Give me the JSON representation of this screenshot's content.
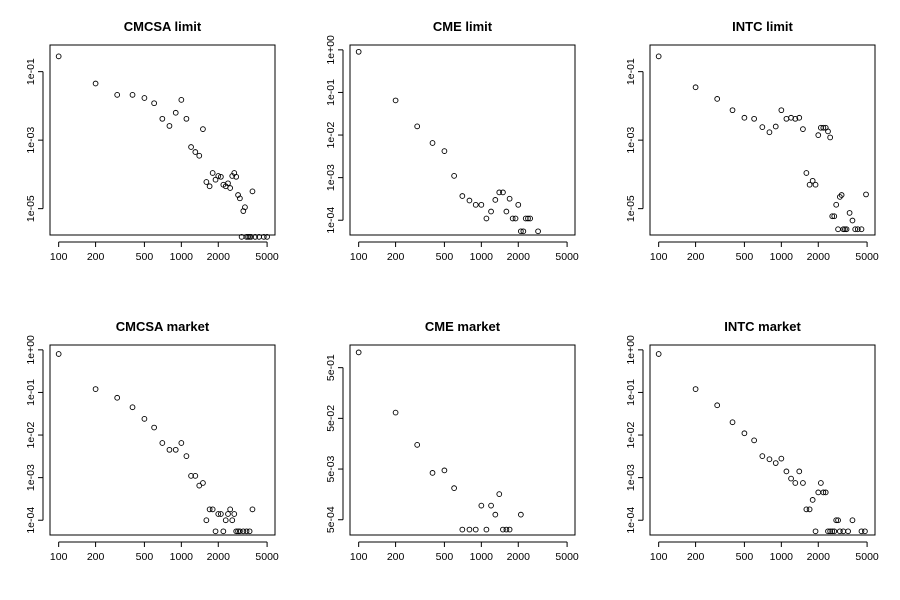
{
  "chart_data": [
    {
      "type": "scatter",
      "title": "CMCSA limit",
      "x_log": true,
      "y_log": true,
      "xlim": [
        85,
        5800
      ],
      "ylim": [
        1.7e-06,
        0.6
      ],
      "x_ticks": [
        100,
        200,
        500,
        1000,
        2000,
        5000
      ],
      "x_tick_labels": [
        "100",
        "200",
        "500",
        "1000",
        "2000",
        "5000"
      ],
      "y_ticks": [
        0.1,
        0.001,
        1e-05
      ],
      "y_tick_labels": [
        "1e-01",
        "1e-03",
        "1e-05"
      ],
      "x": [
        100,
        200,
        300,
        400,
        500,
        600,
        700,
        800,
        900,
        1000,
        1100,
        1200,
        1300,
        1400,
        1500,
        1600,
        1700,
        1800,
        1900,
        2000,
        2100,
        2200,
        2300,
        2400,
        2500,
        2600,
        2700,
        2800,
        2900,
        3000,
        3100,
        3200,
        3300,
        3400,
        3500,
        3600,
        3700,
        3800,
        4000,
        4300,
        4700,
        5000
      ],
      "y": [
        0.28,
        0.045,
        0.021,
        0.021,
        0.017,
        0.012,
        0.0042,
        0.0026,
        0.0063,
        0.015,
        0.0042,
        0.00063,
        0.00045,
        0.00035,
        0.0021,
        6e-05,
        4.5e-05,
        0.00011,
        7e-05,
        9e-05,
        8.5e-05,
        5e-05,
        4.5e-05,
        5.5e-05,
        4e-05,
        9e-05,
        0.00011,
        8.5e-05,
        2.5e-05,
        2e-05,
        1.5e-06,
        8.5e-06,
        1.1e-05,
        1.5e-06,
        1.5e-06,
        1.5e-06,
        1.5e-06,
        3.2e-05,
        1.5e-06,
        1.5e-06,
        1.5e-06,
        1.5e-06
      ]
    },
    {
      "type": "scatter",
      "title": "CME limit",
      "x_log": true,
      "y_log": true,
      "xlim": [
        85,
        5800
      ],
      "ylim": [
        4.5e-05,
        1.3
      ],
      "x_ticks": [
        100,
        200,
        500,
        1000,
        2000,
        5000
      ],
      "x_tick_labels": [
        "100",
        "200",
        "500",
        "1000",
        "2000",
        "5000"
      ],
      "y_ticks": [
        1,
        0.1,
        0.01,
        0.001,
        0.0001
      ],
      "y_tick_labels": [
        "1e+00",
        "1e-01",
        "1e-02",
        "1e-03",
        "1e-04"
      ],
      "x": [
        100,
        200,
        300,
        400,
        500,
        600,
        700,
        800,
        900,
        1000,
        1100,
        1200,
        1300,
        1400,
        1500,
        1600,
        1700,
        1800,
        1900,
        2000,
        2100,
        2200,
        2300,
        2400,
        2500,
        2900
      ],
      "y": [
        0.9,
        0.065,
        0.016,
        0.0065,
        0.0042,
        0.0011,
        0.00037,
        0.00029,
        0.00023,
        0.00023,
        0.00011,
        0.00016,
        0.0003,
        0.00045,
        0.00045,
        0.00016,
        0.00032,
        0.00011,
        0.00011,
        0.00023,
        5.5e-05,
        5.5e-05,
        0.00011,
        0.00011,
        0.00011,
        5.5e-05
      ]
    },
    {
      "type": "scatter",
      "title": "INTC limit",
      "x_log": true,
      "y_log": true,
      "xlim": [
        85,
        5800
      ],
      "ylim": [
        1.7e-06,
        0.6
      ],
      "x_ticks": [
        100,
        200,
        500,
        1000,
        2000,
        5000
      ],
      "x_tick_labels": [
        "100",
        "200",
        "500",
        "1000",
        "2000",
        "5000"
      ],
      "y_ticks": [
        0.1,
        0.001,
        1e-05
      ],
      "y_tick_labels": [
        "1e-01",
        "1e-03",
        "1e-05"
      ],
      "x": [
        100,
        200,
        300,
        400,
        500,
        600,
        700,
        800,
        900,
        1000,
        1100,
        1200,
        1300,
        1400,
        1500,
        1600,
        1700,
        1800,
        1900,
        2000,
        2100,
        2200,
        2300,
        2400,
        2500,
        2600,
        2700,
        2800,
        2900,
        3000,
        3100,
        3200,
        3300,
        3400,
        3600,
        3800,
        4000,
        4200,
        4500,
        4900
      ],
      "y": [
        0.28,
        0.035,
        0.016,
        0.0075,
        0.0045,
        0.0042,
        0.0024,
        0.0017,
        0.0025,
        0.0075,
        0.0042,
        0.0045,
        0.0042,
        0.0045,
        0.0021,
        0.00011,
        5e-05,
        6.5e-05,
        5e-05,
        0.0014,
        0.0023,
        0.0023,
        0.0023,
        0.0018,
        0.0012,
        6e-06,
        6e-06,
        1.3e-05,
        2.5e-06,
        2.2e-05,
        2.5e-05,
        2.5e-06,
        2.5e-06,
        2.5e-06,
        7.5e-06,
        4.5e-06,
        2.5e-06,
        2.5e-06,
        2.5e-06,
        2.6e-05
      ]
    },
    {
      "type": "scatter",
      "title": "CMCSA market",
      "x_log": true,
      "y_log": true,
      "xlim": [
        85,
        5800
      ],
      "ylim": [
        4.5e-05,
        1.3
      ],
      "x_ticks": [
        100,
        200,
        500,
        1000,
        2000,
        5000
      ],
      "x_tick_labels": [
        "100",
        "200",
        "500",
        "1000",
        "2000",
        "5000"
      ],
      "y_ticks": [
        1,
        0.1,
        0.01,
        0.001,
        0.0001
      ],
      "y_tick_labels": [
        "1e+00",
        "1e-01",
        "1e-02",
        "1e-03",
        "1e-04"
      ],
      "x": [
        100,
        200,
        300,
        400,
        500,
        600,
        700,
        800,
        900,
        1000,
        1100,
        1200,
        1300,
        1400,
        1500,
        1600,
        1700,
        1800,
        1900,
        2000,
        2100,
        2200,
        2300,
        2400,
        2500,
        2600,
        2700,
        2800,
        2900,
        3000,
        3200,
        3400,
        3600,
        3800
      ],
      "y": [
        0.8,
        0.12,
        0.075,
        0.045,
        0.024,
        0.015,
        0.0065,
        0.0045,
        0.0045,
        0.0065,
        0.0032,
        0.0011,
        0.0011,
        0.00065,
        0.00075,
        0.0001,
        0.00018,
        0.00018,
        5.5e-05,
        0.00014,
        0.00014,
        5.5e-05,
        0.0001,
        0.00014,
        0.00018,
        0.0001,
        0.00014,
        5.5e-05,
        5.5e-05,
        5.5e-05,
        5.5e-05,
        5.5e-05,
        5.5e-05,
        0.00018
      ]
    },
    {
      "type": "scatter",
      "title": "CME market",
      "x_log": true,
      "y_log": true,
      "xlim": [
        85,
        5800
      ],
      "ylim": [
        0.00025,
        1.4
      ],
      "x_ticks": [
        100,
        200,
        500,
        1000,
        2000,
        5000
      ],
      "x_tick_labels": [
        "100",
        "200",
        "500",
        "1000",
        "2000",
        "5000"
      ],
      "y_ticks": [
        0.5,
        0.05,
        0.005,
        0.0005
      ],
      "y_tick_labels": [
        "5e-01",
        "5e-02",
        "5e-03",
        "5e-04"
      ],
      "x": [
        100,
        200,
        300,
        400,
        500,
        600,
        700,
        800,
        900,
        1000,
        1100,
        1200,
        1300,
        1400,
        1500,
        1600,
        1700,
        2100
      ],
      "y": [
        1.0,
        0.065,
        0.015,
        0.0042,
        0.0047,
        0.0021,
        0.00032,
        0.00032,
        0.00032,
        0.00095,
        0.00032,
        0.00095,
        0.00063,
        0.0016,
        0.00032,
        0.00032,
        0.00032,
        0.00063
      ]
    },
    {
      "type": "scatter",
      "title": "INTC market",
      "x_log": true,
      "y_log": true,
      "xlim": [
        85,
        5800
      ],
      "ylim": [
        4.5e-05,
        1.3
      ],
      "x_ticks": [
        100,
        200,
        500,
        1000,
        2000,
        5000
      ],
      "x_tick_labels": [
        "100",
        "200",
        "500",
        "1000",
        "2000",
        "5000"
      ],
      "y_ticks": [
        1,
        0.1,
        0.01,
        0.001,
        0.0001
      ],
      "y_tick_labels": [
        "1e+00",
        "1e-01",
        "1e-02",
        "1e-03",
        "1e-04"
      ],
      "x": [
        100,
        200,
        300,
        400,
        500,
        600,
        700,
        800,
        900,
        1000,
        1100,
        1200,
        1300,
        1400,
        1500,
        1600,
        1700,
        1800,
        1900,
        2000,
        2100,
        2200,
        2300,
        2400,
        2500,
        2600,
        2700,
        2800,
        2900,
        3000,
        3200,
        3500,
        3800,
        4500,
        4800
      ],
      "y": [
        0.8,
        0.12,
        0.05,
        0.02,
        0.011,
        0.0075,
        0.0032,
        0.0027,
        0.0022,
        0.0028,
        0.0014,
        0.00095,
        0.00075,
        0.0014,
        0.00075,
        0.00018,
        0.00018,
        0.0003,
        5.5e-05,
        0.00045,
        0.00075,
        0.00045,
        0.00045,
        5.5e-05,
        5.5e-05,
        5.5e-05,
        5.5e-05,
        0.0001,
        0.0001,
        5.5e-05,
        5.5e-05,
        5.5e-05,
        0.0001,
        5.5e-05,
        5.5e-05
      ]
    }
  ]
}
